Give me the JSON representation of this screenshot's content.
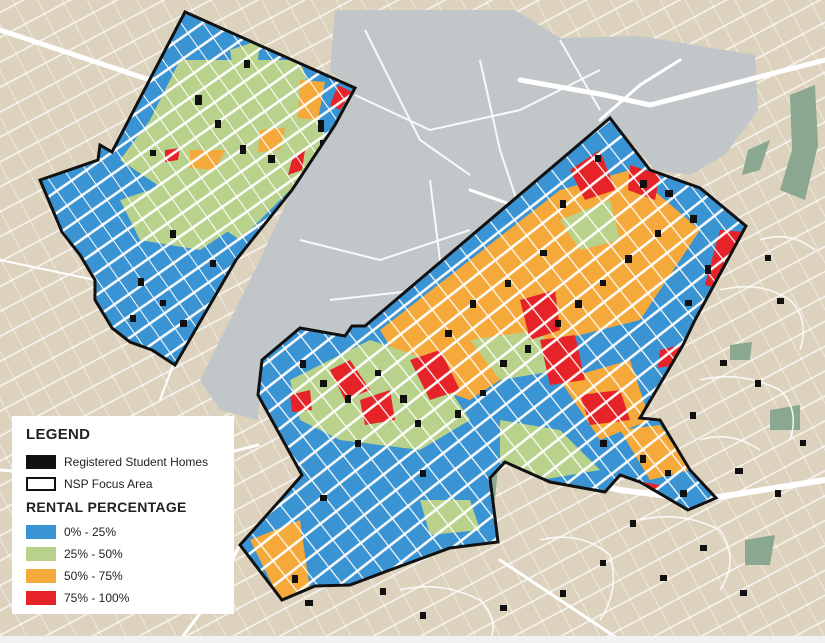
{
  "legend": {
    "title": "LEGEND",
    "items": [
      {
        "label": "Registered Student Homes",
        "swatch": "#111111",
        "style": "filled"
      },
      {
        "label": "NSP Focus Area",
        "swatch": "#111111",
        "style": "outline"
      }
    ],
    "rental_title": "RENTAL PERCENTAGE",
    "rental": [
      {
        "label": "0% - 25%",
        "color": "#3a93d2"
      },
      {
        "label": "25% - 50%",
        "color": "#b8d28c"
      },
      {
        "label": "50% - 75%",
        "color": "#f5a93b"
      },
      {
        "label": "75% - 100%",
        "color": "#e52328"
      }
    ]
  },
  "colors": {
    "base": "#ddd2bd",
    "campus": "#c1c6c9",
    "park": "#8aa890",
    "road": "#ffffff",
    "boundary": "#111111"
  }
}
